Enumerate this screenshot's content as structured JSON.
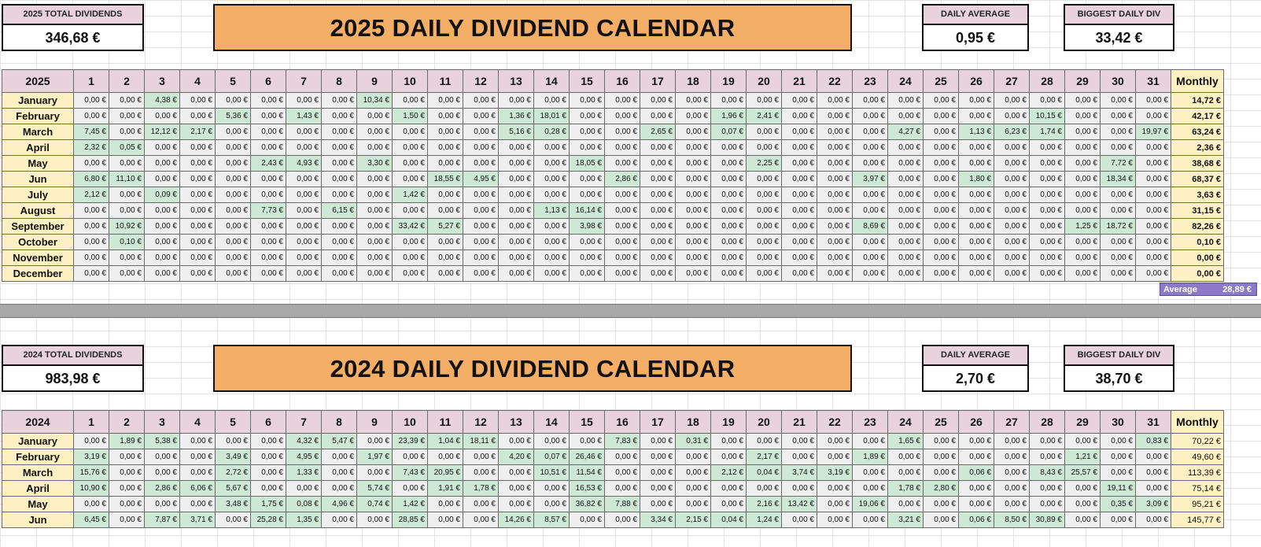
{
  "sections": [
    {
      "total_label": "2025 TOTAL DIVIDENDS",
      "total_value": "346,68 €",
      "title": "2025 DAILY DIVIDEND CALENDAR",
      "avg_label": "DAILY AVERAGE",
      "avg_value": "0,95 €",
      "biggest_label": "BIGGEST DAILY DIV",
      "biggest_value": "33,42 €",
      "year_header": "2025",
      "monthly_header": "Monthly",
      "average_label": "Average",
      "average_value": "28,89 €",
      "rows": [
        {
          "month": "January",
          "values": [
            "0,00 €",
            "0,00 €",
            "4,38 €",
            "0,00 €",
            "0,00 €",
            "0,00 €",
            "0,00 €",
            "0,00 €",
            "10,34 €",
            "0,00 €",
            "0,00 €",
            "0,00 €",
            "0,00 €",
            "0,00 €",
            "0,00 €",
            "0,00 €",
            "0,00 €",
            "0,00 €",
            "0,00 €",
            "0,00 €",
            "0,00 €",
            "0,00 €",
            "0,00 €",
            "0,00 €",
            "0,00 €",
            "0,00 €",
            "0,00 €",
            "0,00 €",
            "0,00 €",
            "0,00 €",
            "0,00 €"
          ],
          "total": "14,72 €"
        },
        {
          "month": "February",
          "values": [
            "0,00 €",
            "0,00 €",
            "0,00 €",
            "0,00 €",
            "5,36 €",
            "0,00 €",
            "1,43 €",
            "0,00 €",
            "0,00 €",
            "1,50 €",
            "0,00 €",
            "0,00 €",
            "1,36 €",
            "18,01 €",
            "0,00 €",
            "0,00 €",
            "0,00 €",
            "0,00 €",
            "1,96 €",
            "2,41 €",
            "0,00 €",
            "0,00 €",
            "0,00 €",
            "0,00 €",
            "0,00 €",
            "0,00 €",
            "0,00 €",
            "10,15 €",
            "0,00 €",
            "0,00 €",
            "0,00 €"
          ],
          "total": "42,17 €"
        },
        {
          "month": "March",
          "values": [
            "7,45 €",
            "0,00 €",
            "12,12 €",
            "2,17 €",
            "0,00 €",
            "0,00 €",
            "0,00 €",
            "0,00 €",
            "0,00 €",
            "0,00 €",
            "0,00 €",
            "0,00 €",
            "5,16 €",
            "0,28 €",
            "0,00 €",
            "0,00 €",
            "2,65 €",
            "0,00 €",
            "0,07 €",
            "0,00 €",
            "0,00 €",
            "0,00 €",
            "0,00 €",
            "4,27 €",
            "0,00 €",
            "1,13 €",
            "6,23 €",
            "1,74 €",
            "0,00 €",
            "0,00 €",
            "19,97 €"
          ],
          "total": "63,24 €"
        },
        {
          "month": "April",
          "values": [
            "2,32 €",
            "0,05 €",
            "0,00 €",
            "0,00 €",
            "0,00 €",
            "0,00 €",
            "0,00 €",
            "0,00 €",
            "0,00 €",
            "0,00 €",
            "0,00 €",
            "0,00 €",
            "0,00 €",
            "0,00 €",
            "0,00 €",
            "0,00 €",
            "0,00 €",
            "0,00 €",
            "0,00 €",
            "0,00 €",
            "0,00 €",
            "0,00 €",
            "0,00 €",
            "0,00 €",
            "0,00 €",
            "0,00 €",
            "0,00 €",
            "0,00 €",
            "0,00 €",
            "0,00 €",
            "0,00 €"
          ],
          "total": "2,36 €"
        },
        {
          "month": "May",
          "values": [
            "0,00 €",
            "0,00 €",
            "0,00 €",
            "0,00 €",
            "0,00 €",
            "2,43 €",
            "4,93 €",
            "0,00 €",
            "3,30 €",
            "0,00 €",
            "0,00 €",
            "0,00 €",
            "0,00 €",
            "0,00 €",
            "18,05 €",
            "0,00 €",
            "0,00 €",
            "0,00 €",
            "0,00 €",
            "2,25 €",
            "0,00 €",
            "0,00 €",
            "0,00 €",
            "0,00 €",
            "0,00 €",
            "0,00 €",
            "0,00 €",
            "0,00 €",
            "0,00 €",
            "7,72 €",
            "0,00 €"
          ],
          "total": "38,68 €"
        },
        {
          "month": "Jun",
          "values": [
            "6,80 €",
            "11,10 €",
            "0,00 €",
            "0,00 €",
            "0,00 €",
            "0,00 €",
            "0,00 €",
            "0,00 €",
            "0,00 €",
            "0,00 €",
            "18,55 €",
            "4,95 €",
            "0,00 €",
            "0,00 €",
            "0,00 €",
            "2,86 €",
            "0,00 €",
            "0,00 €",
            "0,00 €",
            "0,00 €",
            "0,00 €",
            "0,00 €",
            "3,97 €",
            "0,00 €",
            "0,00 €",
            "1,80 €",
            "0,00 €",
            "0,00 €",
            "0,00 €",
            "18,34 €",
            "0,00 €"
          ],
          "total": "68,37 €"
        },
        {
          "month": "July",
          "values": [
            "2,12 €",
            "0,00 €",
            "0,09 €",
            "0,00 €",
            "0,00 €",
            "0,00 €",
            "0,00 €",
            "0,00 €",
            "0,00 €",
            "1,42 €",
            "0,00 €",
            "0,00 €",
            "0,00 €",
            "0,00 €",
            "0,00 €",
            "0,00 €",
            "0,00 €",
            "0,00 €",
            "0,00 €",
            "0,00 €",
            "0,00 €",
            "0,00 €",
            "0,00 €",
            "0,00 €",
            "0,00 €",
            "0,00 €",
            "0,00 €",
            "0,00 €",
            "0,00 €",
            "0,00 €",
            "0,00 €"
          ],
          "total": "3,63 €"
        },
        {
          "month": "August",
          "values": [
            "0,00 €",
            "0,00 €",
            "0,00 €",
            "0,00 €",
            "0,00 €",
            "7,73 €",
            "0,00 €",
            "6,15 €",
            "0,00 €",
            "0,00 €",
            "0,00 €",
            "0,00 €",
            "0,00 €",
            "1,13 €",
            "16,14 €",
            "0,00 €",
            "0,00 €",
            "0,00 €",
            "0,00 €",
            "0,00 €",
            "0,00 €",
            "0,00 €",
            "0,00 €",
            "0,00 €",
            "0,00 €",
            "0,00 €",
            "0,00 €",
            "0,00 €",
            "0,00 €",
            "0,00 €",
            "0,00 €"
          ],
          "total": "31,15 €"
        },
        {
          "month": "September",
          "values": [
            "0,00 €",
            "10,92 €",
            "0,00 €",
            "0,00 €",
            "0,00 €",
            "0,00 €",
            "0,00 €",
            "0,00 €",
            "0,00 €",
            "33,42 €",
            "5,27 €",
            "0,00 €",
            "0,00 €",
            "0,00 €",
            "3,98 €",
            "0,00 €",
            "0,00 €",
            "0,00 €",
            "0,00 €",
            "0,00 €",
            "0,00 €",
            "0,00 €",
            "8,69 €",
            "0,00 €",
            "0,00 €",
            "0,00 €",
            "0,00 €",
            "0,00 €",
            "1,25 €",
            "18,72 €",
            "0,00 €"
          ],
          "total": "82,26 €"
        },
        {
          "month": "October",
          "values": [
            "0,00 €",
            "0,10 €",
            "0,00 €",
            "0,00 €",
            "0,00 €",
            "0,00 €",
            "0,00 €",
            "0,00 €",
            "0,00 €",
            "0,00 €",
            "0,00 €",
            "0,00 €",
            "0,00 €",
            "0,00 €",
            "0,00 €",
            "0,00 €",
            "0,00 €",
            "0,00 €",
            "0,00 €",
            "0,00 €",
            "0,00 €",
            "0,00 €",
            "0,00 €",
            "0,00 €",
            "0,00 €",
            "0,00 €",
            "0,00 €",
            "0,00 €",
            "0,00 €",
            "0,00 €",
            "0,00 €"
          ],
          "total": "0,10 €"
        },
        {
          "month": "November",
          "values": [
            "0,00 €",
            "0,00 €",
            "0,00 €",
            "0,00 €",
            "0,00 €",
            "0,00 €",
            "0,00 €",
            "0,00 €",
            "0,00 €",
            "0,00 €",
            "0,00 €",
            "0,00 €",
            "0,00 €",
            "0,00 €",
            "0,00 €",
            "0,00 €",
            "0,00 €",
            "0,00 €",
            "0,00 €",
            "0,00 €",
            "0,00 €",
            "0,00 €",
            "0,00 €",
            "0,00 €",
            "0,00 €",
            "0,00 €",
            "0,00 €",
            "0,00 €",
            "0,00 €",
            "0,00 €",
            "0,00 €"
          ],
          "total": "0,00 €"
        },
        {
          "month": "December",
          "values": [
            "0,00 €",
            "0,00 €",
            "0,00 €",
            "0,00 €",
            "0,00 €",
            "0,00 €",
            "0,00 €",
            "0,00 €",
            "0,00 €",
            "0,00 €",
            "0,00 €",
            "0,00 €",
            "0,00 €",
            "0,00 €",
            "0,00 €",
            "0,00 €",
            "0,00 €",
            "0,00 €",
            "0,00 €",
            "0,00 €",
            "0,00 €",
            "0,00 €",
            "0,00 €",
            "0,00 €",
            "0,00 €",
            "0,00 €",
            "0,00 €",
            "0,00 €",
            "0,00 €",
            "0,00 €",
            "0,00 €"
          ],
          "total": "0,00 €"
        }
      ]
    },
    {
      "total_label": "2024 TOTAL DIVIDENDS",
      "total_value": "983,98 €",
      "title": "2024 DAILY DIVIDEND CALENDAR",
      "avg_label": "DAILY AVERAGE",
      "avg_value": "2,70 €",
      "biggest_label": "BIGGEST DAILY DIV",
      "biggest_value": "38,70 €",
      "year_header": "2024",
      "monthly_header": "Monthly",
      "rows": [
        {
          "month": "January",
          "values": [
            "0,00 €",
            "1,89 €",
            "5,38 €",
            "0,00 €",
            "0,00 €",
            "0,00 €",
            "4,32 €",
            "5,47 €",
            "0,00 €",
            "23,39 €",
            "1,04 €",
            "18,11 €",
            "0,00 €",
            "0,00 €",
            "0,00 €",
            "7,83 €",
            "0,00 €",
            "0,31 €",
            "0,00 €",
            "0,00 €",
            "0,00 €",
            "0,00 €",
            "0,00 €",
            "1,65 €",
            "0,00 €",
            "0,00 €",
            "0,00 €",
            "0,00 €",
            "0,00 €",
            "0,00 €",
            "0,83 €"
          ],
          "total": "70,22 €"
        },
        {
          "month": "February",
          "values": [
            "3,19 €",
            "0,00 €",
            "0,00 €",
            "0,00 €",
            "3,49 €",
            "0,00 €",
            "4,95 €",
            "0,00 €",
            "1,97 €",
            "0,00 €",
            "0,00 €",
            "0,00 €",
            "4,20 €",
            "0,07 €",
            "26,46 €",
            "0,00 €",
            "0,00 €",
            "0,00 €",
            "0,00 €",
            "2,17 €",
            "0,00 €",
            "0,00 €",
            "1,89 €",
            "0,00 €",
            "0,00 €",
            "0,00 €",
            "0,00 €",
            "0,00 €",
            "1,21 €",
            "0,00 €",
            "0,00 €"
          ],
          "total": "49,60 €"
        },
        {
          "month": "March",
          "values": [
            "15,76 €",
            "0,00 €",
            "0,00 €",
            "0,00 €",
            "2,72 €",
            "0,00 €",
            "1,33 €",
            "0,00 €",
            "0,00 €",
            "7,43 €",
            "20,95 €",
            "0,00 €",
            "0,00 €",
            "10,51 €",
            "11,54 €",
            "0,00 €",
            "0,00 €",
            "0,00 €",
            "2,12 €",
            "0,04 €",
            "3,74 €",
            "3,19 €",
            "0,00 €",
            "0,00 €",
            "0,00 €",
            "0,06 €",
            "0,00 €",
            "8,43 €",
            "25,57 €",
            "0,00 €",
            "0,00 €"
          ],
          "total": "113,39 €"
        },
        {
          "month": "April",
          "values": [
            "10,90 €",
            "0,00 €",
            "2,86 €",
            "6,06 €",
            "5,67 €",
            "0,00 €",
            "0,00 €",
            "0,00 €",
            "5,74 €",
            "0,00 €",
            "1,91 €",
            "1,78 €",
            "0,00 €",
            "0,00 €",
            "16,53 €",
            "0,00 €",
            "0,00 €",
            "0,00 €",
            "0,00 €",
            "0,00 €",
            "0,00 €",
            "0,00 €",
            "0,00 €",
            "1,78 €",
            "2,80 €",
            "0,00 €",
            "0,00 €",
            "0,00 €",
            "0,00 €",
            "19,11 €",
            "0,00 €"
          ],
          "total": "75,14 €"
        },
        {
          "month": "May",
          "values": [
            "0,00 €",
            "0,00 €",
            "0,00 €",
            "0,00 €",
            "3,48 €",
            "1,75 €",
            "0,08 €",
            "4,96 €",
            "0,74 €",
            "1,42 €",
            "0,00 €",
            "0,00 €",
            "0,00 €",
            "0,00 €",
            "36,82 €",
            "7,88 €",
            "0,00 €",
            "0,00 €",
            "0,00 €",
            "2,16 €",
            "13,42 €",
            "0,00 €",
            "19,06 €",
            "0,00 €",
            "0,00 €",
            "0,00 €",
            "0,00 €",
            "0,00 €",
            "0,00 €",
            "0,35 €",
            "3,09 €"
          ],
          "total": "95,21 €"
        },
        {
          "month": "Jun",
          "values": [
            "6,45 €",
            "0,00 €",
            "7,87 €",
            "3,71 €",
            "0,00 €",
            "25,28 €",
            "1,35 €",
            "0,00 €",
            "0,00 €",
            "28,85 €",
            "0,00 €",
            "0,00 €",
            "14,26 €",
            "8,57 €",
            "0,00 €",
            "0,00 €",
            "3,34 €",
            "2,15 €",
            "0,04 €",
            "1,24 €",
            "0,00 €",
            "0,00 €",
            "0,00 €",
            "3,21 €",
            "0,00 €",
            "0,06 €",
            "8,50 €",
            "30,89 €",
            "0,00 €",
            "0,00 €",
            "0,00 €"
          ],
          "total": "145,77 €"
        }
      ]
    }
  ]
}
